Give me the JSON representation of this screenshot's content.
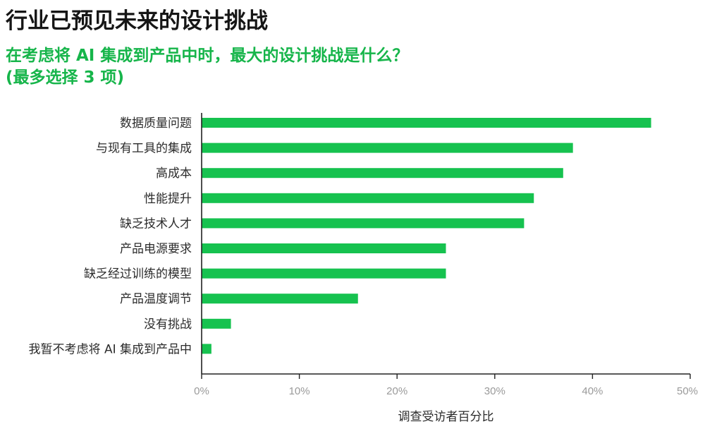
{
  "header": {
    "title": "行业已预见未来的设计挑战",
    "subtitle_line1": "在考虑将 AI 集成到产品中时，最大的设计挑战是什么？",
    "subtitle_line2": "(最多选择 3 项)"
  },
  "colors": {
    "bar": "#16c24f",
    "title": "#161616",
    "subtitle": "#16b54a",
    "axis": "#222222",
    "tick_label": "#9a9a9a"
  },
  "chart_data": {
    "type": "bar",
    "orientation": "horizontal",
    "categories": [
      "数据质量问题",
      "与现有工具的集成",
      "高成本",
      "性能提升",
      "缺乏技术人才",
      "产品电源要求",
      "缺乏经过训练的模型",
      "产品温度调节",
      "没有挑战",
      "我暂不考虑将 AI 集成到产品中"
    ],
    "values": [
      46,
      38,
      37,
      34,
      33,
      25,
      25,
      16,
      3,
      1
    ],
    "xlim": [
      0,
      50
    ],
    "xticks": [
      0,
      10,
      20,
      30,
      40,
      50
    ],
    "xtick_labels": [
      "0%",
      "10%",
      "20%",
      "30%",
      "40%",
      "50%"
    ],
    "xlabel": "调查受访者百分比",
    "ylabel": "",
    "grid": false,
    "legend": "none"
  }
}
